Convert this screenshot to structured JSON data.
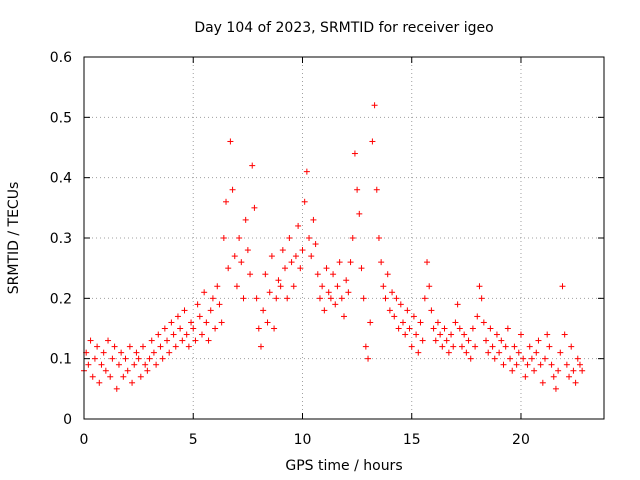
{
  "chart_data": {
    "type": "scatter",
    "title": "Day 104 of 2023, SRMTID for receiver igeo",
    "xlabel": "GPS time / hours",
    "ylabel": "SRMTID / TECUs",
    "xlim": [
      0,
      23.8
    ],
    "ylim": [
      0,
      0.6
    ],
    "xticks": [
      0,
      5,
      10,
      15,
      20
    ],
    "xtick_labels": [
      "0",
      "5",
      "10",
      "15",
      "20"
    ],
    "yticks": [
      0,
      0.1,
      0.2,
      0.3,
      0.4,
      0.5,
      0.6
    ],
    "ytick_labels": [
      "0",
      "0.1",
      "0.2",
      "0.3",
      "0.4",
      "0.5",
      "0.6"
    ],
    "grid": true,
    "marker": "+",
    "series": [
      {
        "name": "SRMTID",
        "color": "#ff0000",
        "x": [
          0.0,
          0.1,
          0.2,
          0.3,
          0.4,
          0.5,
          0.6,
          0.7,
          0.8,
          0.9,
          1.0,
          1.1,
          1.2,
          1.3,
          1.4,
          1.5,
          1.6,
          1.7,
          1.8,
          1.9,
          2.0,
          2.1,
          2.2,
          2.3,
          2.4,
          2.5,
          2.6,
          2.7,
          2.8,
          2.9,
          3.0,
          3.1,
          3.2,
          3.3,
          3.4,
          3.5,
          3.6,
          3.7,
          3.8,
          3.9,
          4.0,
          4.1,
          4.2,
          4.3,
          4.4,
          4.5,
          4.6,
          4.7,
          4.8,
          4.9,
          5.0,
          5.1,
          5.2,
          5.3,
          5.4,
          5.5,
          5.6,
          5.7,
          5.8,
          5.9,
          6.0,
          6.1,
          6.2,
          6.3,
          6.4,
          6.5,
          6.6,
          6.7,
          6.8,
          6.9,
          7.0,
          7.1,
          7.2,
          7.3,
          7.4,
          7.5,
          7.6,
          7.7,
          7.8,
          7.9,
          8.0,
          8.1,
          8.2,
          8.3,
          8.4,
          8.5,
          8.6,
          8.7,
          8.8,
          8.9,
          9.0,
          9.1,
          9.2,
          9.3,
          9.4,
          9.5,
          9.6,
          9.7,
          9.8,
          9.9,
          10.0,
          10.1,
          10.2,
          10.3,
          10.4,
          10.5,
          10.6,
          10.7,
          10.8,
          10.9,
          11.0,
          11.1,
          11.2,
          11.3,
          11.4,
          11.5,
          11.6,
          11.7,
          11.8,
          11.9,
          12.0,
          12.1,
          12.2,
          12.3,
          12.4,
          12.5,
          12.6,
          12.7,
          12.8,
          12.9,
          13.0,
          13.1,
          13.2,
          13.3,
          13.4,
          13.5,
          13.6,
          13.7,
          13.8,
          13.9,
          14.0,
          14.1,
          14.2,
          14.3,
          14.4,
          14.5,
          14.6,
          14.7,
          14.8,
          14.9,
          15.0,
          15.1,
          15.2,
          15.3,
          15.4,
          15.5,
          15.6,
          15.7,
          15.8,
          15.9,
          16.0,
          16.1,
          16.2,
          16.3,
          16.4,
          16.5,
          16.6,
          16.7,
          16.8,
          16.9,
          17.0,
          17.1,
          17.2,
          17.3,
          17.4,
          17.5,
          17.6,
          17.7,
          17.8,
          17.9,
          18.0,
          18.1,
          18.2,
          18.3,
          18.4,
          18.5,
          18.6,
          18.7,
          18.8,
          18.9,
          19.0,
          19.1,
          19.2,
          19.3,
          19.4,
          19.5,
          19.6,
          19.7,
          19.8,
          19.9,
          20.0,
          20.1,
          20.2,
          20.3,
          20.4,
          20.5,
          20.6,
          20.7,
          20.8,
          20.9,
          21.0,
          21.1,
          21.2,
          21.3,
          21.4,
          21.5,
          21.6,
          21.7,
          21.8,
          21.9,
          22.0,
          22.1,
          22.2,
          22.3,
          22.4,
          22.5,
          22.6,
          22.7,
          22.8
        ],
        "y": [
          0.08,
          0.11,
          0.09,
          0.13,
          0.07,
          0.1,
          0.12,
          0.06,
          0.09,
          0.11,
          0.08,
          0.13,
          0.07,
          0.1,
          0.12,
          0.05,
          0.09,
          0.11,
          0.07,
          0.1,
          0.08,
          0.12,
          0.06,
          0.09,
          0.11,
          0.1,
          0.07,
          0.12,
          0.09,
          0.08,
          0.1,
          0.13,
          0.11,
          0.09,
          0.14,
          0.12,
          0.1,
          0.15,
          0.13,
          0.11,
          0.16,
          0.14,
          0.12,
          0.17,
          0.15,
          0.13,
          0.18,
          0.14,
          0.12,
          0.16,
          0.15,
          0.13,
          0.19,
          0.17,
          0.14,
          0.21,
          0.16,
          0.13,
          0.18,
          0.2,
          0.15,
          0.22,
          0.19,
          0.16,
          0.3,
          0.36,
          0.25,
          0.46,
          0.38,
          0.27,
          0.22,
          0.3,
          0.26,
          0.2,
          0.33,
          0.28,
          0.24,
          0.42,
          0.35,
          0.2,
          0.15,
          0.12,
          0.18,
          0.24,
          0.16,
          0.21,
          0.27,
          0.15,
          0.2,
          0.23,
          0.22,
          0.28,
          0.25,
          0.2,
          0.3,
          0.26,
          0.22,
          0.27,
          0.32,
          0.25,
          0.28,
          0.36,
          0.41,
          0.3,
          0.27,
          0.33,
          0.29,
          0.24,
          0.2,
          0.22,
          0.18,
          0.25,
          0.21,
          0.2,
          0.24,
          0.19,
          0.22,
          0.26,
          0.2,
          0.17,
          0.23,
          0.21,
          0.26,
          0.3,
          0.44,
          0.38,
          0.34,
          0.25,
          0.2,
          0.12,
          0.1,
          0.16,
          0.46,
          0.52,
          0.38,
          0.3,
          0.26,
          0.22,
          0.2,
          0.24,
          0.18,
          0.21,
          0.17,
          0.2,
          0.15,
          0.19,
          0.16,
          0.14,
          0.18,
          0.15,
          0.12,
          0.17,
          0.14,
          0.11,
          0.16,
          0.13,
          0.2,
          0.26,
          0.22,
          0.18,
          0.15,
          0.13,
          0.16,
          0.14,
          0.12,
          0.15,
          0.13,
          0.11,
          0.14,
          0.12,
          0.16,
          0.19,
          0.15,
          0.12,
          0.14,
          0.11,
          0.13,
          0.1,
          0.15,
          0.12,
          0.17,
          0.22,
          0.2,
          0.16,
          0.13,
          0.11,
          0.15,
          0.12,
          0.1,
          0.14,
          0.11,
          0.13,
          0.09,
          0.12,
          0.15,
          0.1,
          0.08,
          0.12,
          0.09,
          0.11,
          0.14,
          0.1,
          0.07,
          0.09,
          0.12,
          0.1,
          0.08,
          0.11,
          0.13,
          0.09,
          0.06,
          0.1,
          0.14,
          0.12,
          0.09,
          0.07,
          0.05,
          0.08,
          0.11,
          0.22,
          0.14,
          0.09,
          0.07,
          0.12,
          0.08,
          0.06,
          0.1,
          0.09,
          0.08
        ]
      }
    ]
  }
}
